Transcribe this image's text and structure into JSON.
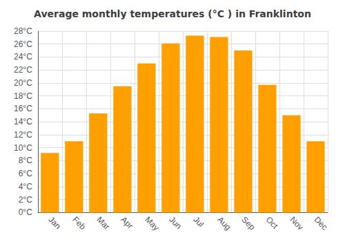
{
  "chart_data": {
    "type": "bar",
    "title": "Average monthly temperatures (°C ) in Franklinton",
    "categories": [
      "Jan",
      "Feb",
      "Mar",
      "Apr",
      "May",
      "Jun",
      "Jul",
      "Aug",
      "Sep",
      "Oct",
      "Nov",
      "Dec"
    ],
    "values": [
      9.2,
      11.0,
      15.3,
      19.5,
      23.0,
      26.1,
      27.3,
      27.1,
      25.0,
      19.7,
      15.0,
      11.0
    ],
    "color": "#FFA000",
    "ylim": [
      0,
      28
    ],
    "yticks": [
      {
        "value": 0,
        "label": "0°C"
      },
      {
        "value": 2,
        "label": "2°C"
      },
      {
        "value": 4,
        "label": "4°C"
      },
      {
        "value": 6,
        "label": "6°C"
      },
      {
        "value": 8,
        "label": "8°C"
      },
      {
        "value": 10,
        "label": "10°C"
      },
      {
        "value": 12,
        "label": "12°C"
      },
      {
        "value": 14,
        "label": "14°C"
      },
      {
        "value": 16,
        "label": "16°C"
      },
      {
        "value": 18,
        "label": "18°C"
      },
      {
        "value": 20,
        "label": "20°C"
      },
      {
        "value": 22,
        "label": "22°C"
      },
      {
        "value": 24,
        "label": "24°C"
      },
      {
        "value": 26,
        "label": "26°C"
      },
      {
        "value": 28,
        "label": "28°C"
      }
    ],
    "grid": true
  }
}
